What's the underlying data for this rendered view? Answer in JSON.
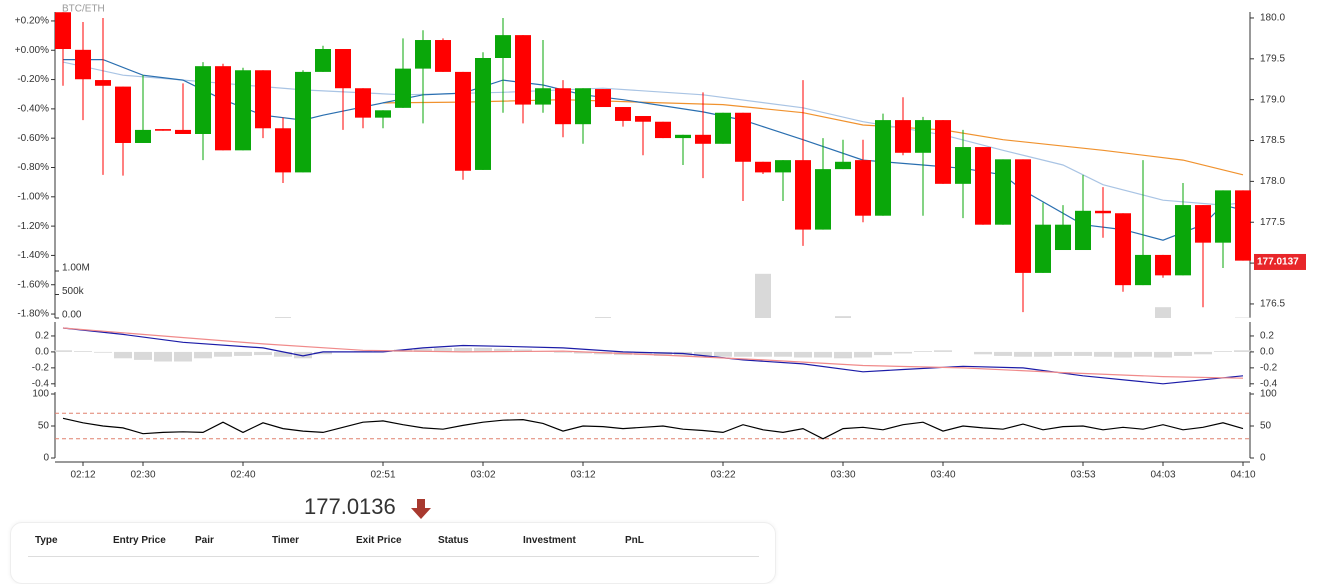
{
  "chart_data": [
    {
      "type": "candlestick",
      "title": "BTC/ETH",
      "categories": [
        null,
        "02:12",
        null,
        null,
        "02:30",
        null,
        null,
        null,
        null,
        "02:40",
        null,
        null,
        null,
        null,
        null,
        null,
        "02:51",
        null,
        null,
        null,
        null,
        "03:02",
        null,
        null,
        null,
        null,
        "03:12",
        null,
        null,
        null,
        null,
        null,
        null,
        "03:22",
        null,
        null,
        null,
        null,
        null,
        "03:30",
        null,
        null,
        null,
        null,
        "03:40",
        null,
        null,
        null,
        null,
        null,
        null,
        "03:53",
        null,
        null,
        null,
        "04:03",
        null,
        null,
        null,
        "04:10"
      ],
      "open": [
        180.07,
        179.61,
        179.24,
        179.16,
        178.47,
        178.64,
        178.63,
        178.58,
        179.41,
        178.38,
        179.36,
        178.65,
        178.11,
        179.34,
        179.62,
        179.14,
        178.78,
        178.9,
        179.38,
        179.73,
        179.34,
        178.14,
        179.51,
        179.79,
        178.94,
        179.14,
        178.7,
        179.13,
        178.91,
        178.8,
        178.73,
        178.53,
        178.57,
        178.46,
        178.84,
        178.24,
        178.11,
        178.26,
        177.41,
        178.15,
        178.26,
        177.58,
        178.75,
        178.35,
        178.75,
        177.97,
        178.42,
        177.47,
        178.27,
        176.88,
        177.16,
        177.16,
        177.64,
        177.61,
        176.73,
        177.1,
        176.85,
        177.71,
        177.25,
        177.89
      ],
      "high": [
        180.07,
        179.95,
        180.0,
        179.16,
        179.3,
        178.64,
        179.2,
        179.46,
        179.44,
        179.39,
        179.36,
        178.78,
        179.36,
        179.66,
        179.62,
        179.14,
        178.87,
        179.75,
        179.85,
        179.75,
        179.34,
        179.58,
        180.0,
        179.79,
        179.73,
        179.24,
        179.14,
        179.13,
        178.91,
        178.8,
        178.73,
        178.57,
        179.09,
        178.84,
        178.84,
        178.24,
        178.26,
        179.24,
        178.53,
        178.51,
        178.51,
        178.83,
        179.03,
        178.79,
        178.75,
        178.63,
        178.42,
        178.27,
        178.27,
        177.74,
        177.71,
        178.08,
        177.93,
        177.61,
        178.26,
        177.1,
        177.98,
        177.71,
        177.89,
        177.89
      ],
      "low": [
        179.17,
        178.75,
        178.08,
        178.07,
        178.47,
        178.62,
        178.58,
        178.26,
        178.38,
        178.38,
        178.53,
        177.98,
        178.11,
        179.34,
        178.63,
        178.65,
        178.65,
        178.9,
        178.71,
        179.34,
        178.02,
        178.14,
        178.84,
        178.71,
        178.84,
        178.54,
        178.46,
        178.91,
        178.67,
        178.32,
        178.53,
        178.2,
        178.04,
        178.46,
        177.76,
        178.09,
        177.76,
        177.21,
        177.41,
        178.15,
        177.5,
        177.58,
        178.32,
        177.58,
        177.97,
        177.55,
        177.47,
        177.47,
        176.4,
        176.88,
        177.16,
        177.16,
        177.31,
        176.65,
        176.73,
        176.82,
        176.85,
        176.46,
        176.94,
        177.03
      ],
      "close": [
        179.62,
        179.25,
        179.17,
        178.47,
        178.63,
        178.62,
        178.58,
        179.41,
        178.38,
        179.36,
        178.65,
        178.11,
        179.34,
        179.62,
        179.14,
        178.78,
        178.87,
        179.38,
        179.73,
        179.34,
        178.13,
        179.51,
        179.79,
        178.94,
        179.14,
        178.7,
        179.14,
        178.91,
        178.74,
        178.73,
        178.53,
        178.57,
        178.46,
        178.84,
        178.24,
        178.11,
        178.26,
        177.41,
        178.15,
        178.24,
        177.58,
        178.75,
        178.35,
        178.75,
        177.97,
        178.42,
        177.47,
        178.27,
        176.88,
        177.47,
        177.47,
        177.64,
        177.61,
        176.73,
        177.1,
        176.85,
        177.71,
        177.25,
        177.89,
        177.03
      ],
      "up_color": "#0aa70a",
      "down_color": "#ff0000",
      "ylim": [
        176.328,
        180.073
      ],
      "yticks": [
        {
          "value": 180,
          "label": "180.0"
        },
        179.5,
        {
          "value": 179,
          "label": "179.0"
        },
        178.5,
        {
          "value": 178,
          "label": "178.0"
        },
        177.5,
        {
          "value": 177,
          "label": "177.0"
        },
        176.5
      ],
      "y2lim": [
        -1.827,
        0.261
      ],
      "y2ticks": [
        {
          "value": 0.2,
          "label": "+0.20%"
        },
        {
          "value": 0,
          "label": "+0.00%"
        },
        {
          "value": -0.2,
          "label": "-0.20%"
        },
        {
          "value": -0.4,
          "label": "-0.40%"
        },
        {
          "value": -0.6,
          "label": "-0.60%"
        },
        {
          "value": -0.8,
          "label": "-0.80%"
        },
        {
          "value": -1.0,
          "label": "-1.00%"
        },
        {
          "value": -1.2,
          "label": "-1.20%"
        },
        {
          "value": -1.4,
          "label": "-1.40%"
        },
        {
          "value": -1.6,
          "label": "-1.60%"
        },
        {
          "value": -1.8,
          "label": "-1.80%"
        }
      ],
      "series": [
        {
          "color": "#f0922e",
          "x": [
            16,
            20,
            25,
            30,
            33,
            37,
            40,
            44,
            47,
            52,
            56,
            59
          ],
          "values": [
            178.96,
            178.97,
            179.0,
            178.96,
            178.94,
            178.84,
            178.69,
            178.63,
            178.51,
            178.38,
            178.26,
            178.08
          ]
        },
        {
          "color": "#a9c4e4",
          "x": [
            0,
            3,
            7,
            12,
            17,
            22,
            27,
            32,
            37,
            40,
            44,
            47,
            50,
            52,
            55,
            58,
            59
          ],
          "values": [
            179.46,
            179.3,
            179.22,
            179.12,
            179.06,
            179.09,
            179.14,
            179.06,
            178.9,
            178.73,
            178.57,
            178.38,
            178.2,
            177.96,
            177.77,
            177.71,
            177.74
          ]
        },
        {
          "color": "#2a6fb0",
          "x": [
            0,
            2,
            4,
            6,
            8,
            10,
            12,
            13,
            16,
            18,
            20,
            22,
            24,
            26,
            28,
            32,
            34,
            37,
            40,
            43,
            45,
            47,
            48,
            51,
            53,
            55,
            57,
            58,
            59
          ],
          "values": [
            179.49,
            179.49,
            179.3,
            179.24,
            179.0,
            178.81,
            178.75,
            178.81,
            178.96,
            179.06,
            179.08,
            179.24,
            179.18,
            179.06,
            179.0,
            178.85,
            178.75,
            178.51,
            178.26,
            178.2,
            178.16,
            178.08,
            177.89,
            177.47,
            177.41,
            177.28,
            177.47,
            177.71,
            177.65
          ]
        }
      ],
      "volume": {
        "color": "#d9d9d9",
        "ylim": [
          0,
          6510000
        ],
        "yticks": [
          {
            "value": 1000000,
            "label": "1.00M"
          },
          {
            "value": 500000,
            "label": "500k"
          },
          {
            "value": 0,
            "label": "0.00"
          }
        ],
        "values": [
          0,
          0,
          0,
          0,
          0,
          0,
          0,
          0,
          0,
          0,
          0,
          20000,
          0,
          0,
          0,
          0,
          0,
          0,
          0,
          0,
          0,
          0,
          0,
          0,
          0,
          0,
          0,
          20000,
          0,
          0,
          0,
          0,
          0,
          0,
          0,
          940000,
          0,
          0,
          0,
          40000,
          0,
          0,
          0,
          0,
          0,
          0,
          0,
          0,
          0,
          0,
          0,
          0,
          0,
          0,
          0,
          230000,
          0,
          0,
          0,
          10000
        ]
      },
      "last_price": 177.0137,
      "last_price_color": "#e8262a"
    },
    {
      "type": "macd",
      "ylim": [
        -0.44,
        0.375
      ],
      "yticks": [
        0.2,
        {
          "value": 0,
          "label": "0.0"
        },
        -0.2,
        -0.4
      ],
      "series": [
        {
          "color": "#1c1ca8",
          "x": [
            0,
            3,
            6,
            10,
            12,
            13,
            16,
            18,
            20,
            22,
            25,
            28,
            31,
            34,
            37,
            40,
            42,
            45,
            48,
            51,
            55,
            57,
            59
          ],
          "values": [
            0.3,
            0.22,
            0.12,
            0.05,
            -0.05,
            0.0,
            0.0,
            0.05,
            0.08,
            0.07,
            0.05,
            0.0,
            -0.02,
            -0.1,
            -0.15,
            -0.25,
            -0.22,
            -0.18,
            -0.2,
            -0.3,
            -0.4,
            -0.35,
            -0.3
          ]
        },
        {
          "color": "#f08a8a",
          "x": [
            0,
            5,
            10,
            15,
            20,
            25,
            30,
            35,
            40,
            45,
            50,
            55,
            59
          ],
          "values": [
            0.3,
            0.2,
            0.1,
            0.02,
            0.0,
            0.01,
            -0.04,
            -0.1,
            -0.17,
            -0.2,
            -0.26,
            -0.31,
            -0.33
          ]
        }
      ],
      "histogram": {
        "color": "#d9d9d9",
        "values": [
          0.02,
          0.01,
          -0.01,
          -0.08,
          -0.1,
          -0.12,
          -0.12,
          -0.08,
          -0.06,
          -0.05,
          -0.04,
          -0.06,
          -0.08,
          -0.03,
          0.0,
          0.01,
          0.02,
          0.03,
          0.04,
          0.05,
          0.05,
          0.05,
          0.04,
          0.03,
          0.01,
          -0.01,
          -0.02,
          -0.03,
          -0.04,
          -0.04,
          -0.05,
          -0.05,
          -0.06,
          -0.06,
          -0.06,
          -0.06,
          -0.06,
          -0.07,
          -0.07,
          -0.08,
          -0.07,
          -0.04,
          -0.02,
          0.01,
          0.02,
          0.0,
          -0.03,
          -0.05,
          -0.06,
          -0.06,
          -0.05,
          -0.05,
          -0.06,
          -0.07,
          -0.06,
          -0.07,
          -0.05,
          -0.03,
          0.01,
          0.02
        ]
      }
    },
    {
      "type": "rsi",
      "ylim": [
        0,
        100
      ],
      "yticks": [
        100,
        50,
        0
      ],
      "levels": [
        70,
        30
      ],
      "level_color": "#e0806f",
      "series": [
        {
          "color": "#000000",
          "values": [
            62,
            55,
            50,
            47,
            38,
            40,
            41,
            40,
            56,
            40,
            55,
            46,
            42,
            40,
            48,
            56,
            58,
            52,
            47,
            45,
            51,
            56,
            59,
            60,
            54,
            42,
            50,
            49,
            46,
            48,
            50,
            45,
            43,
            40,
            52,
            44,
            40,
            46,
            30,
            46,
            48,
            44,
            52,
            56,
            42,
            50,
            47,
            45,
            53,
            44,
            49,
            50,
            44,
            48,
            45,
            52,
            44,
            48,
            55,
            46
          ]
        }
      ]
    }
  ],
  "price": 177.0136,
  "table": {
    "columns": [
      "Type",
      "Entry Price",
      "Pair",
      "Timer",
      "Exit Price",
      "Status",
      "Investment",
      "PnL"
    ]
  }
}
